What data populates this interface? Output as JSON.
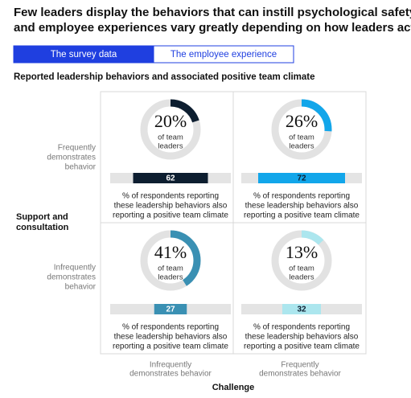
{
  "title": [
    "Few leaders display the behaviors that can instill psychological safety,",
    "and employee experiences vary greatly depending on how leaders act."
  ],
  "tabs": [
    {
      "label": "The survey data",
      "active": true
    },
    {
      "label": "The employee experience",
      "active": false
    }
  ],
  "chart_data": {
    "type": "quadrant",
    "subtitle": "Reported leadership behaviors and associated positive team climate",
    "y_axis_label": [
      "Support and",
      "consultation"
    ],
    "x_axis_label": "Challenge",
    "row_labels": [
      [
        "Frequently",
        "demonstrates",
        "behavior"
      ],
      [
        "Infrequently",
        "demonstrates",
        "behavior"
      ]
    ],
    "column_labels": [
      [
        "Infrequently",
        "demonstrates behavior"
      ],
      [
        "Frequently",
        "demonstrates behavior"
      ]
    ],
    "cells": [
      {
        "percent": 20,
        "percent_label": "20%",
        "percent_caption": [
          "of team",
          "leaders"
        ],
        "value": 62,
        "color": "#0d1e30",
        "text_color": "#ffffff",
        "caption": [
          "% of respondents reporting",
          "these leadership behaviors also",
          "reporting a positive team climate"
        ]
      },
      {
        "percent": 26,
        "percent_label": "26%",
        "percent_caption": [
          "of team",
          "leaders"
        ],
        "value": 72,
        "color": "#12a6ea",
        "text_color": "#0d1e30",
        "caption": [
          "% of respondents reporting",
          "these leadership behaviors also",
          "reporting a positive team climate"
        ]
      },
      {
        "percent": 41,
        "percent_label": "41%",
        "percent_caption": [
          "of team",
          "leaders"
        ],
        "value": 27,
        "color": "#3a90b3",
        "text_color": "#ffffff",
        "caption": [
          "% of respondents reporting",
          "these leadership behaviors also",
          "reporting a positive team climate"
        ]
      },
      {
        "percent": 13,
        "percent_label": "13%",
        "percent_caption": [
          "of team",
          "leaders"
        ],
        "value": 32,
        "color": "#ace6ee",
        "text_color": "#0d1e30",
        "caption": [
          "% of respondents reporting",
          "these leadership behaviors also",
          "reporting a positive team climate"
        ]
      }
    ]
  }
}
